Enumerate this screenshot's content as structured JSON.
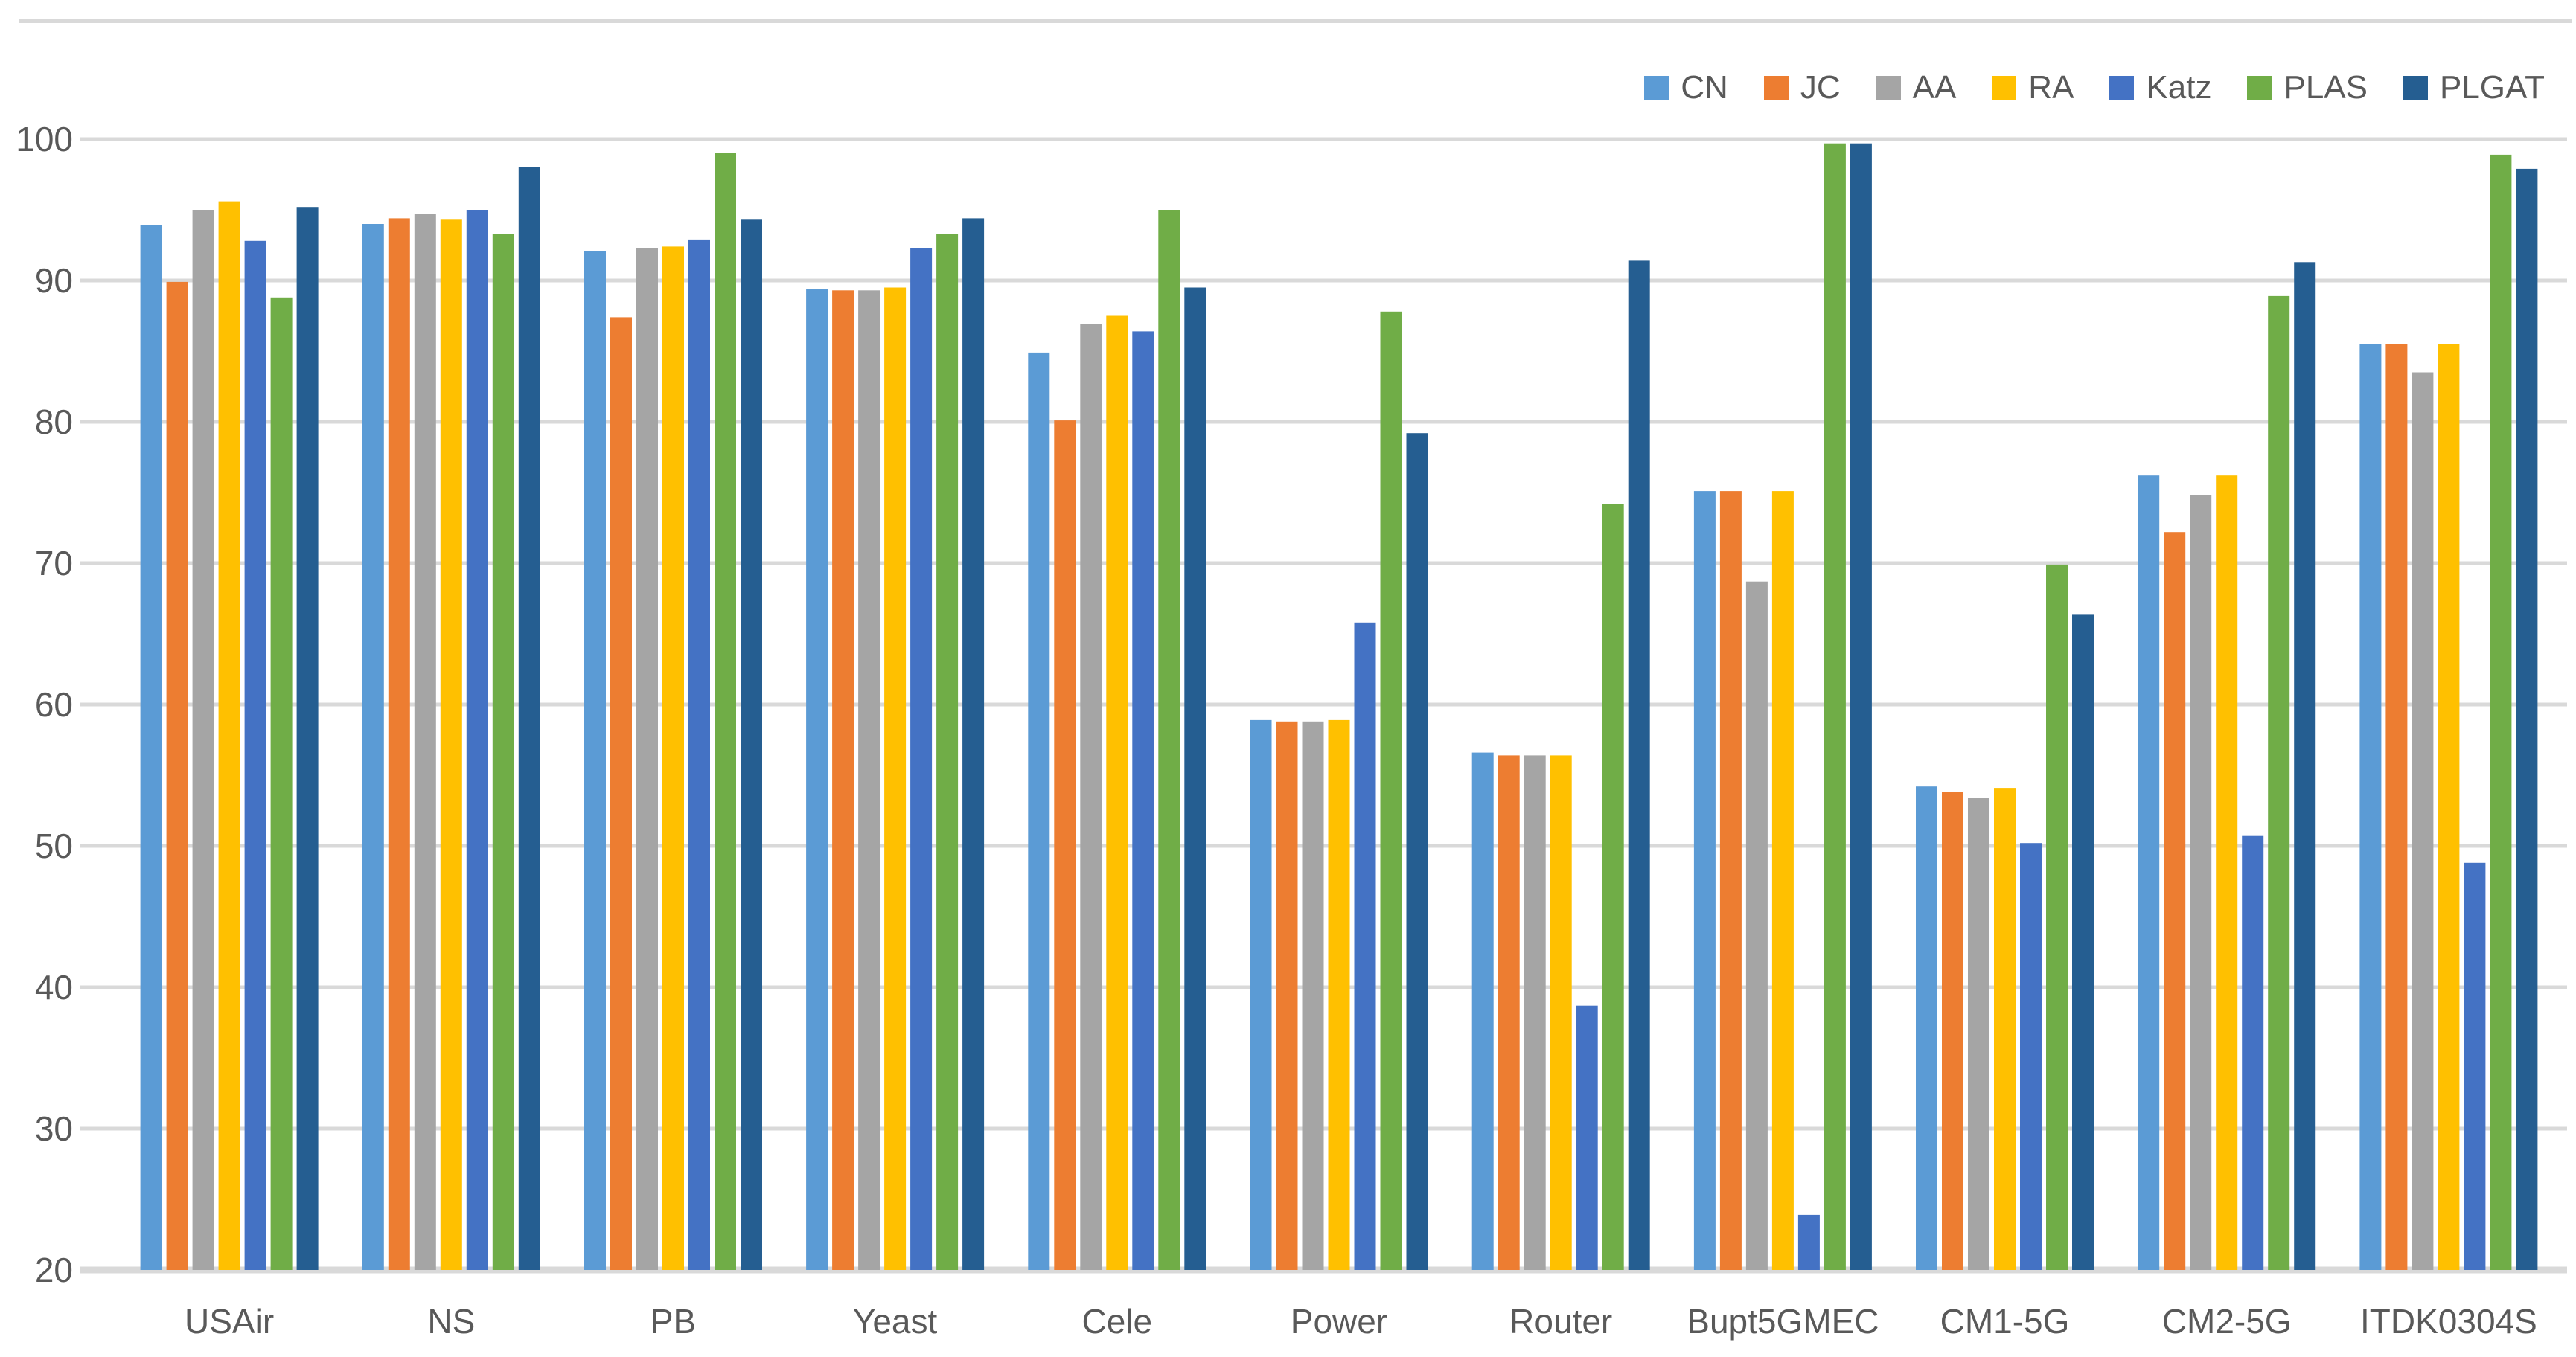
{
  "chart_data": {
    "type": "bar",
    "title": "",
    "xlabel": "",
    "ylabel": "",
    "categories": [
      "USAir",
      "NS",
      "PB",
      "Yeast",
      "Cele",
      "Power",
      "Router",
      "Bupt5GMEC",
      "CM1-5G",
      "CM2-5G",
      "ITDK0304S"
    ],
    "series": [
      {
        "name": "CN",
        "color": "#5B9BD5",
        "values": [
          93.9,
          94.0,
          92.1,
          89.4,
          84.9,
          58.9,
          56.6,
          75.1,
          54.2,
          76.2,
          85.5
        ]
      },
      {
        "name": "JC",
        "color": "#ED7D31",
        "values": [
          89.9,
          94.4,
          87.4,
          89.3,
          80.1,
          58.8,
          56.4,
          75.1,
          53.8,
          72.2,
          85.5
        ]
      },
      {
        "name": "AA",
        "color": "#A5A5A5",
        "values": [
          95.0,
          94.7,
          92.3,
          89.3,
          86.9,
          58.8,
          56.4,
          68.7,
          53.4,
          74.8,
          83.5
        ]
      },
      {
        "name": "RA",
        "color": "#FFC000",
        "values": [
          95.6,
          94.3,
          92.4,
          89.5,
          87.5,
          58.9,
          56.4,
          75.1,
          54.1,
          76.2,
          85.5
        ]
      },
      {
        "name": "Katz",
        "color": "#4472C4",
        "values": [
          92.8,
          95.0,
          92.9,
          92.3,
          86.4,
          65.8,
          38.7,
          23.9,
          50.2,
          50.7,
          48.8
        ]
      },
      {
        "name": "PLAS",
        "color": "#70AD47",
        "values": [
          88.8,
          93.3,
          99.0,
          93.3,
          95.0,
          87.8,
          74.2,
          99.7,
          69.9,
          88.9,
          98.9
        ]
      },
      {
        "name": "PLGAT",
        "color": "#255E91",
        "values": [
          95.2,
          98.0,
          94.3,
          94.4,
          89.5,
          79.2,
          91.4,
          99.7,
          66.4,
          91.3,
          97.9
        ]
      }
    ],
    "ylim": [
      20,
      100
    ],
    "ytick_step": 10,
    "yticks": [
      "20",
      "30",
      "40",
      "50",
      "60",
      "70",
      "80",
      "90",
      "100"
    ],
    "grid": true,
    "legend_position": "top-right"
  },
  "styles": {
    "background": "#FFFFFF",
    "grid_color": "#D9D9D9",
    "axis_text_color": "#595959"
  }
}
